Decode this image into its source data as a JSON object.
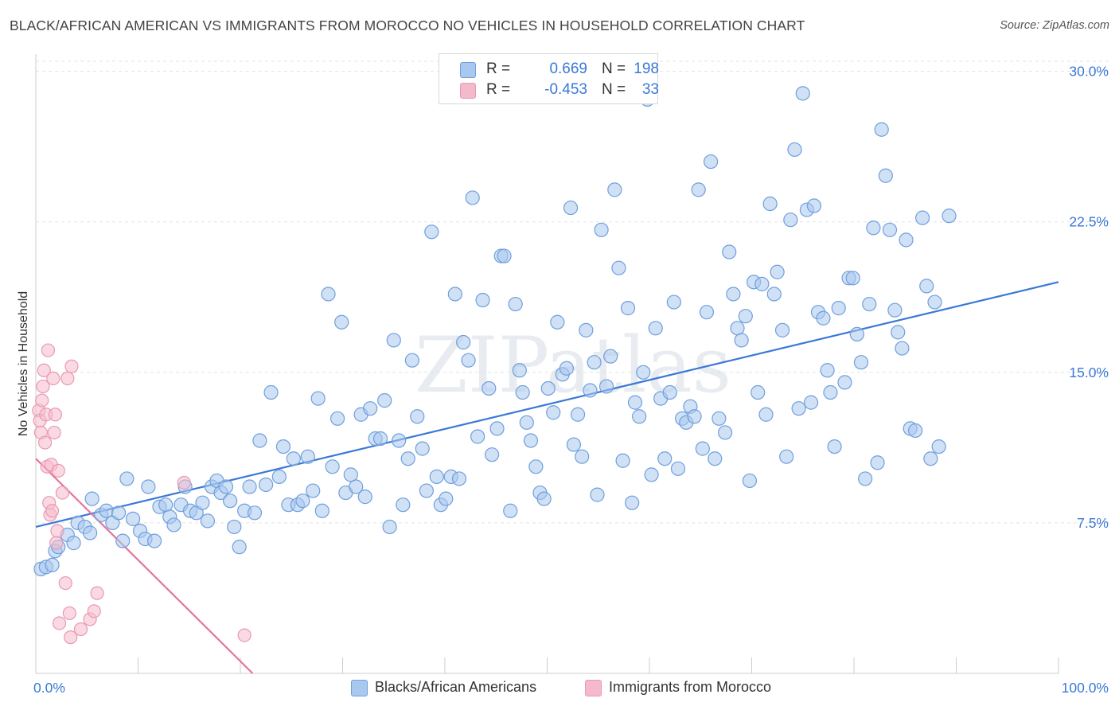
{
  "title": "BLACK/AFRICAN AMERICAN VS IMMIGRANTS FROM MOROCCO NO VEHICLES IN HOUSEHOLD CORRELATION CHART",
  "source": "Source: ZipAtlas.com",
  "watermark": "ZIPatlas",
  "colors": {
    "blue": "#3b78d8",
    "blue_fill": "#a9c8ef",
    "pink": "#e8739b",
    "pink_fill": "#f5b9cc",
    "grid": "#e3e3e3",
    "axis_label": "#3b78d8"
  },
  "legend": {
    "rows": [
      {
        "r_label": "R =",
        "r_value": "0.669",
        "n_label": "N =",
        "n_value": "198",
        "color": "#a9c8ef",
        "border": "#6f9fdd"
      },
      {
        "r_label": "R =",
        "r_value": "-0.453",
        "n_label": "N =",
        "n_value": "33",
        "color": "#f5b9cc",
        "border": "#e899b3"
      }
    ]
  },
  "bottom_legend": {
    "series1": "Blacks/African Americans",
    "series2": "Immigrants from Morocco"
  },
  "chart_data": {
    "type": "scatter",
    "title": "BLACK/AFRICAN AMERICAN VS IMMIGRANTS FROM MOROCCO NO VEHICLES IN HOUSEHOLD CORRELATION CHART",
    "xlabel": "",
    "ylabel": "No Vehicles in Household",
    "xlim": [
      0,
      100
    ],
    "ylim": [
      0,
      30.5
    ],
    "x_tick_labels": [
      "0.0%",
      "100.0%"
    ],
    "y_ticks": [
      7.5,
      15.0,
      22.5,
      30.0
    ],
    "y_tick_labels": [
      "7.5%",
      "15.0%",
      "22.5%",
      "30.0%"
    ],
    "grid": true,
    "series": [
      {
        "name": "Blacks/African Americans",
        "color": "#3b78d8",
        "trend": {
          "x": [
            0,
            100
          ],
          "y": [
            7.3,
            19.5
          ]
        },
        "points": [
          [
            0.5,
            5.2
          ],
          [
            1.0,
            5.3
          ],
          [
            1.6,
            5.4
          ],
          [
            1.9,
            6.1
          ],
          [
            2.2,
            6.3
          ],
          [
            3.1,
            6.9
          ],
          [
            3.7,
            6.5
          ],
          [
            4.1,
            7.5
          ],
          [
            4.8,
            7.3
          ],
          [
            5.3,
            7.0
          ],
          [
            5.5,
            8.7
          ],
          [
            6.4,
            7.9
          ],
          [
            6.9,
            8.1
          ],
          [
            7.5,
            7.5
          ],
          [
            8.1,
            8.0
          ],
          [
            8.5,
            6.6
          ],
          [
            8.9,
            9.7
          ],
          [
            9.5,
            7.7
          ],
          [
            10.2,
            7.1
          ],
          [
            10.7,
            6.7
          ],
          [
            11.0,
            9.3
          ],
          [
            11.6,
            6.6
          ],
          [
            12.1,
            8.3
          ],
          [
            12.7,
            8.4
          ],
          [
            13.1,
            7.8
          ],
          [
            13.5,
            7.4
          ],
          [
            14.2,
            8.4
          ],
          [
            14.6,
            9.3
          ],
          [
            15.1,
            8.1
          ],
          [
            15.7,
            8.0
          ],
          [
            16.3,
            8.5
          ],
          [
            16.8,
            7.6
          ],
          [
            17.2,
            9.3
          ],
          [
            17.7,
            9.6
          ],
          [
            18.1,
            9.0
          ],
          [
            18.6,
            9.3
          ],
          [
            19.0,
            8.6
          ],
          [
            19.4,
            7.3
          ],
          [
            19.9,
            6.3
          ],
          [
            20.4,
            8.1
          ],
          [
            20.9,
            9.3
          ],
          [
            21.4,
            8.0
          ],
          [
            21.9,
            11.6
          ],
          [
            22.5,
            9.4
          ],
          [
            23.0,
            14.0
          ],
          [
            23.8,
            9.8
          ],
          [
            24.2,
            11.3
          ],
          [
            24.7,
            8.4
          ],
          [
            25.2,
            10.7
          ],
          [
            25.6,
            8.4
          ],
          [
            26.1,
            8.6
          ],
          [
            26.6,
            10.8
          ],
          [
            27.1,
            9.1
          ],
          [
            27.6,
            13.7
          ],
          [
            28.0,
            8.1
          ],
          [
            28.6,
            18.9
          ],
          [
            29.0,
            10.3
          ],
          [
            29.5,
            12.7
          ],
          [
            29.9,
            17.5
          ],
          [
            30.3,
            9.0
          ],
          [
            30.8,
            9.9
          ],
          [
            31.3,
            9.3
          ],
          [
            31.8,
            12.9
          ],
          [
            32.2,
            8.8
          ],
          [
            32.7,
            13.2
          ],
          [
            33.2,
            11.7
          ],
          [
            33.7,
            11.7
          ],
          [
            34.1,
            13.6
          ],
          [
            34.6,
            7.3
          ],
          [
            35.0,
            16.6
          ],
          [
            35.5,
            11.6
          ],
          [
            35.9,
            8.4
          ],
          [
            36.4,
            10.7
          ],
          [
            36.8,
            15.6
          ],
          [
            37.3,
            12.8
          ],
          [
            37.8,
            11.2
          ],
          [
            38.2,
            9.1
          ],
          [
            38.7,
            22.0
          ],
          [
            39.2,
            9.8
          ],
          [
            39.6,
            8.4
          ],
          [
            40.1,
            8.7
          ],
          [
            40.6,
            9.8
          ],
          [
            41.0,
            18.9
          ],
          [
            41.4,
            9.7
          ],
          [
            41.8,
            16.5
          ],
          [
            42.3,
            15.6
          ],
          [
            42.7,
            23.7
          ],
          [
            43.2,
            11.8
          ],
          [
            43.7,
            18.6
          ],
          [
            44.3,
            14.2
          ],
          [
            44.6,
            10.9
          ],
          [
            45.1,
            12.2
          ],
          [
            45.5,
            20.8
          ],
          [
            45.8,
            20.8
          ],
          [
            46.4,
            8.1
          ],
          [
            46.9,
            18.4
          ],
          [
            47.3,
            15.1
          ],
          [
            47.6,
            14.0
          ],
          [
            48.0,
            12.5
          ],
          [
            48.4,
            11.6
          ],
          [
            48.9,
            10.3
          ],
          [
            49.3,
            9.0
          ],
          [
            49.7,
            8.7
          ],
          [
            50.1,
            14.2
          ],
          [
            50.6,
            13.0
          ],
          [
            51.0,
            17.5
          ],
          [
            51.5,
            14.9
          ],
          [
            51.9,
            15.2
          ],
          [
            52.3,
            23.2
          ],
          [
            52.6,
            11.4
          ],
          [
            53.0,
            12.9
          ],
          [
            53.4,
            10.8
          ],
          [
            53.8,
            17.1
          ],
          [
            54.2,
            14.1
          ],
          [
            54.6,
            15.5
          ],
          [
            54.9,
            8.9
          ],
          [
            55.3,
            22.1
          ],
          [
            55.8,
            14.3
          ],
          [
            56.2,
            15.8
          ],
          [
            56.6,
            24.1
          ],
          [
            57.0,
            20.2
          ],
          [
            57.4,
            10.6
          ],
          [
            57.9,
            18.2
          ],
          [
            58.3,
            8.5
          ],
          [
            58.6,
            13.5
          ],
          [
            59.0,
            12.8
          ],
          [
            59.4,
            15.0
          ],
          [
            59.8,
            28.6
          ],
          [
            60.2,
            9.9
          ],
          [
            60.6,
            17.2
          ],
          [
            61.1,
            13.7
          ],
          [
            61.5,
            10.7
          ],
          [
            62.0,
            14.0
          ],
          [
            62.4,
            18.5
          ],
          [
            62.8,
            10.2
          ],
          [
            63.2,
            12.7
          ],
          [
            63.6,
            12.5
          ],
          [
            64.0,
            13.3
          ],
          [
            64.4,
            12.8
          ],
          [
            64.8,
            24.1
          ],
          [
            65.2,
            11.2
          ],
          [
            65.6,
            18.0
          ],
          [
            66.0,
            25.5
          ],
          [
            66.4,
            10.7
          ],
          [
            66.8,
            12.7
          ],
          [
            67.4,
            12.0
          ],
          [
            67.8,
            21.0
          ],
          [
            68.2,
            18.9
          ],
          [
            68.6,
            17.2
          ],
          [
            69.0,
            16.6
          ],
          [
            69.4,
            17.8
          ],
          [
            69.8,
            9.6
          ],
          [
            70.2,
            19.5
          ],
          [
            70.6,
            14.0
          ],
          [
            71.0,
            19.4
          ],
          [
            71.4,
            12.9
          ],
          [
            71.8,
            23.4
          ],
          [
            72.2,
            18.9
          ],
          [
            72.5,
            20.0
          ],
          [
            73.0,
            17.1
          ],
          [
            73.4,
            10.8
          ],
          [
            73.8,
            22.6
          ],
          [
            74.2,
            26.1
          ],
          [
            74.6,
            13.2
          ],
          [
            75.0,
            28.9
          ],
          [
            75.4,
            23.1
          ],
          [
            75.8,
            13.5
          ],
          [
            76.1,
            23.3
          ],
          [
            76.5,
            18.0
          ],
          [
            77.0,
            17.7
          ],
          [
            77.4,
            15.1
          ],
          [
            77.7,
            14.0
          ],
          [
            78.1,
            11.3
          ],
          [
            78.5,
            18.2
          ],
          [
            79.1,
            14.5
          ],
          [
            79.5,
            19.7
          ],
          [
            79.9,
            19.7
          ],
          [
            80.3,
            16.9
          ],
          [
            80.7,
            15.5
          ],
          [
            81.1,
            9.7
          ],
          [
            81.5,
            18.4
          ],
          [
            81.9,
            22.2
          ],
          [
            82.3,
            10.5
          ],
          [
            82.7,
            27.1
          ],
          [
            83.1,
            24.8
          ],
          [
            83.5,
            22.1
          ],
          [
            84.0,
            18.1
          ],
          [
            84.3,
            17.0
          ],
          [
            84.7,
            16.2
          ],
          [
            85.1,
            21.6
          ],
          [
            85.5,
            12.2
          ],
          [
            86.0,
            12.1
          ],
          [
            86.7,
            22.7
          ],
          [
            87.1,
            19.3
          ],
          [
            87.5,
            10.7
          ],
          [
            87.9,
            18.5
          ],
          [
            88.3,
            11.3
          ],
          [
            89.3,
            22.8
          ]
        ]
      },
      {
        "name": "Immigrants from Morocco",
        "color": "#e8739b",
        "trend": {
          "x": [
            0,
            21.2
          ],
          "y": [
            10.7,
            0
          ]
        },
        "points": [
          [
            0.3,
            13.1
          ],
          [
            0.4,
            12.6
          ],
          [
            0.5,
            12.0
          ],
          [
            0.6,
            13.6
          ],
          [
            0.7,
            14.3
          ],
          [
            0.8,
            15.1
          ],
          [
            0.9,
            11.5
          ],
          [
            1.0,
            12.9
          ],
          [
            1.1,
            10.3
          ],
          [
            1.2,
            16.1
          ],
          [
            1.3,
            8.5
          ],
          [
            1.4,
            7.9
          ],
          [
            1.5,
            10.4
          ],
          [
            1.6,
            8.1
          ],
          [
            1.7,
            14.7
          ],
          [
            1.8,
            12.0
          ],
          [
            1.9,
            12.9
          ],
          [
            2.0,
            6.5
          ],
          [
            2.1,
            7.1
          ],
          [
            2.2,
            10.1
          ],
          [
            2.3,
            2.5
          ],
          [
            2.6,
            9.0
          ],
          [
            2.9,
            4.5
          ],
          [
            3.1,
            14.7
          ],
          [
            3.3,
            3.0
          ],
          [
            3.4,
            1.8
          ],
          [
            3.5,
            15.3
          ],
          [
            4.4,
            2.2
          ],
          [
            5.3,
            2.7
          ],
          [
            5.7,
            3.1
          ],
          [
            6.0,
            4.0
          ],
          [
            14.5,
            9.5
          ],
          [
            20.4,
            1.9
          ]
        ]
      }
    ]
  }
}
